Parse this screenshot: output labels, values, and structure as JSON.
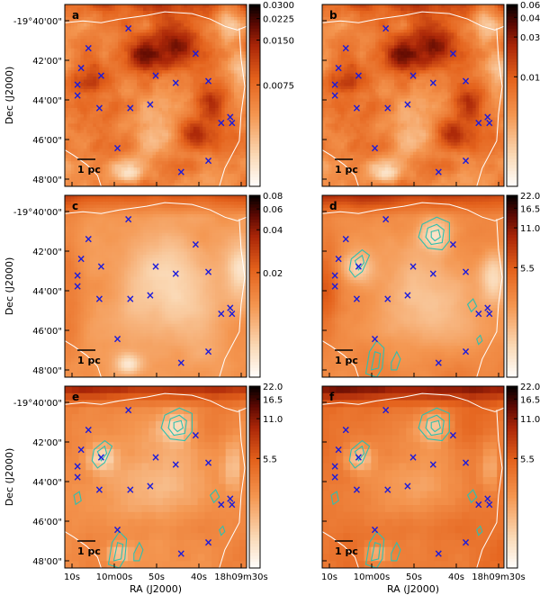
{
  "figure": {
    "colors": {
      "boundary": "#ffffff",
      "marker": "#1a1adc",
      "contour": "#2fbfae",
      "frame": "#000000"
    },
    "xaxis": {
      "label": "RA (J2000)",
      "ticks": [
        "10s",
        "10m00s",
        "50s",
        "40s",
        "18h09m30s"
      ]
    },
    "yaxis": {
      "label": "Dec (J2000)",
      "ticks": [
        "-19°40'00\"",
        "42'00\"",
        "44'00\"",
        "46'00\"",
        "48'00\""
      ]
    },
    "scalebar_label": "1 pc",
    "marker_symbol": "×",
    "markers": [
      [
        0.09,
        0.35
      ],
      [
        0.2,
        0.39
      ],
      [
        0.36,
        0.57
      ],
      [
        0.29,
        0.79
      ],
      [
        0.35,
        0.13
      ],
      [
        0.64,
        0.92
      ],
      [
        0.79,
        0.86
      ],
      [
        0.86,
        0.65
      ],
      [
        0.91,
        0.62
      ],
      [
        0.92,
        0.65
      ],
      [
        0.61,
        0.43
      ],
      [
        0.5,
        0.39
      ],
      [
        0.47,
        0.55
      ],
      [
        0.79,
        0.42
      ],
      [
        0.72,
        0.27
      ],
      [
        0.07,
        0.5
      ],
      [
        0.13,
        0.24
      ],
      [
        0.07,
        0.44
      ],
      [
        0.19,
        0.57
      ]
    ],
    "panels": [
      {
        "id": "a",
        "label": "a",
        "vmin": 0.0036,
        "vmax": 0.03,
        "ticks": [
          "0.0300",
          "0.0225",
          "0.0150",
          "0.0075"
        ],
        "tickvals": [
          0.03,
          0.0225,
          0.015,
          0.0075
        ],
        "style": "dust-dark",
        "contours": []
      },
      {
        "id": "b",
        "label": "b",
        "vmin": 0.006,
        "vmax": 0.06,
        "ticks": [
          "0.060",
          "0.045",
          "0.030",
          "0.015"
        ],
        "tickvals": [
          0.06,
          0.045,
          0.03,
          0.015
        ],
        "style": "dust-dark",
        "contours": []
      },
      {
        "id": "c",
        "label": "c",
        "vmin": 0.009,
        "vmax": 0.08,
        "ticks": [
          "0.08",
          "0.06",
          "0.04",
          "0.02"
        ],
        "tickvals": [
          0.08,
          0.06,
          0.04,
          0.02
        ],
        "style": "smooth-light",
        "contours": []
      },
      {
        "id": "d",
        "label": "d",
        "vmin": 2.2,
        "vmax": 22.0,
        "ticks": [
          "22.0",
          "16.5",
          "11.0",
          "5.5"
        ],
        "tickvals": [
          22.0,
          16.5,
          11.0,
          5.5
        ],
        "style": "smooth-temp",
        "contours": [
          "main",
          "west",
          "south",
          "east"
        ]
      },
      {
        "id": "e",
        "label": "e",
        "vmin": 2.2,
        "vmax": 22.0,
        "ticks": [
          "22.0",
          "16.5",
          "11.0",
          "5.5"
        ],
        "tickvals": [
          22.0,
          16.5,
          11.0,
          5.5
        ],
        "style": "blocky",
        "contours": [
          "main",
          "west",
          "south",
          "east",
          "southeast"
        ]
      },
      {
        "id": "f",
        "label": "f",
        "vmin": 2.2,
        "vmax": 22.0,
        "ticks": [
          "22.0",
          "16.5",
          "11.0",
          "5.5"
        ],
        "tickvals": [
          22.0,
          16.5,
          11.0,
          5.5
        ],
        "style": "blocky-dark",
        "contours": [
          "main",
          "west",
          "south",
          "east",
          "southeast"
        ]
      }
    ]
  }
}
